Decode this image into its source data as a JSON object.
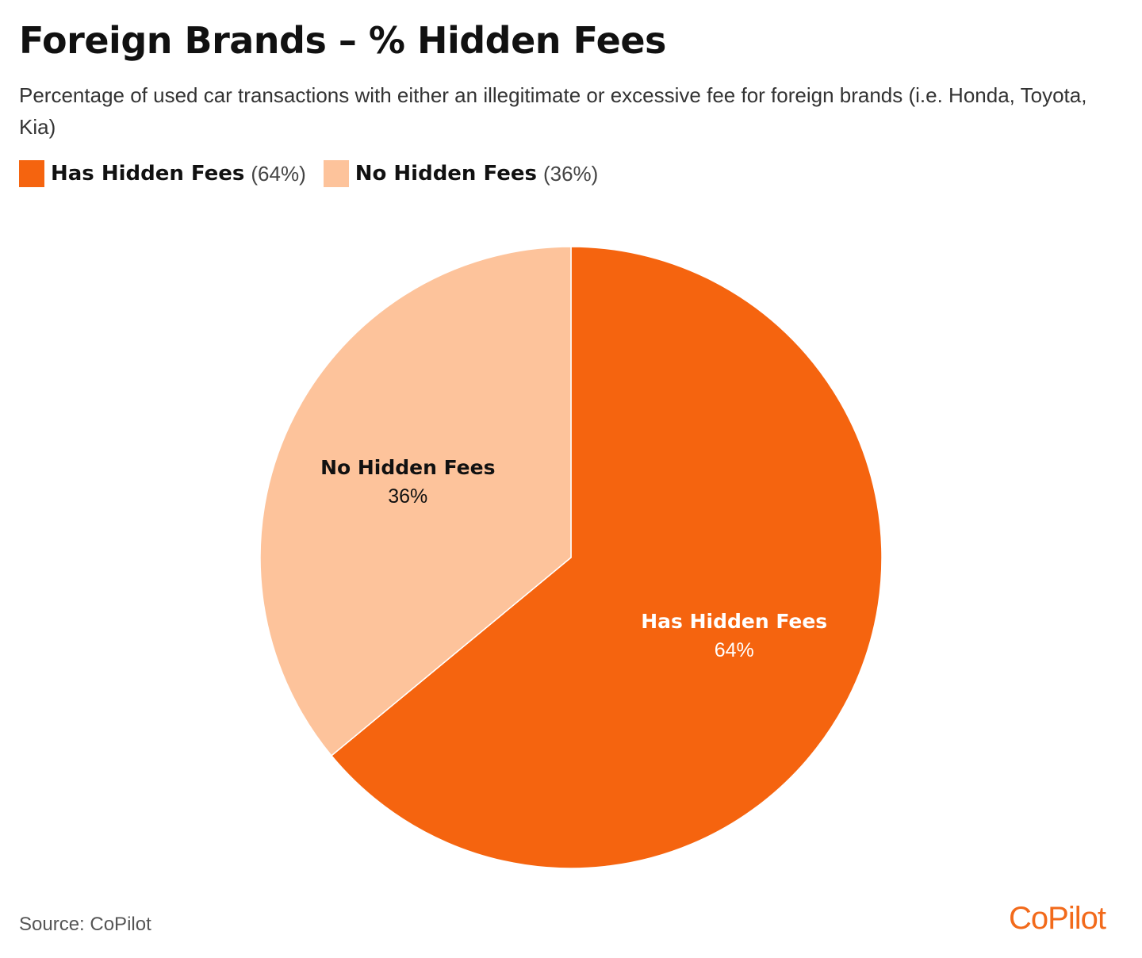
{
  "chart_data": {
    "type": "pie",
    "title": "Foreign Brands – % Hidden Fees",
    "subtitle": "Percentage of used car transactions with either an illegitimate or excessive fee for foreign brands (i.e. Honda, Toyota, Kia)",
    "legend_placement": "top-left",
    "slices": [
      {
        "name": "Has Hidden Fees",
        "value": 64,
        "label": "64%",
        "legend_pct": "(64%)",
        "color": "#f5640f",
        "label_color": "#ffffff"
      },
      {
        "name": "No Hidden Fees",
        "value": 36,
        "label": "36%",
        "legend_pct": "(36%)",
        "color": "#fdc39b",
        "label_color": "#111111"
      }
    ]
  },
  "footer": {
    "source": "Source: CoPilot",
    "logo": "CoPilot"
  }
}
